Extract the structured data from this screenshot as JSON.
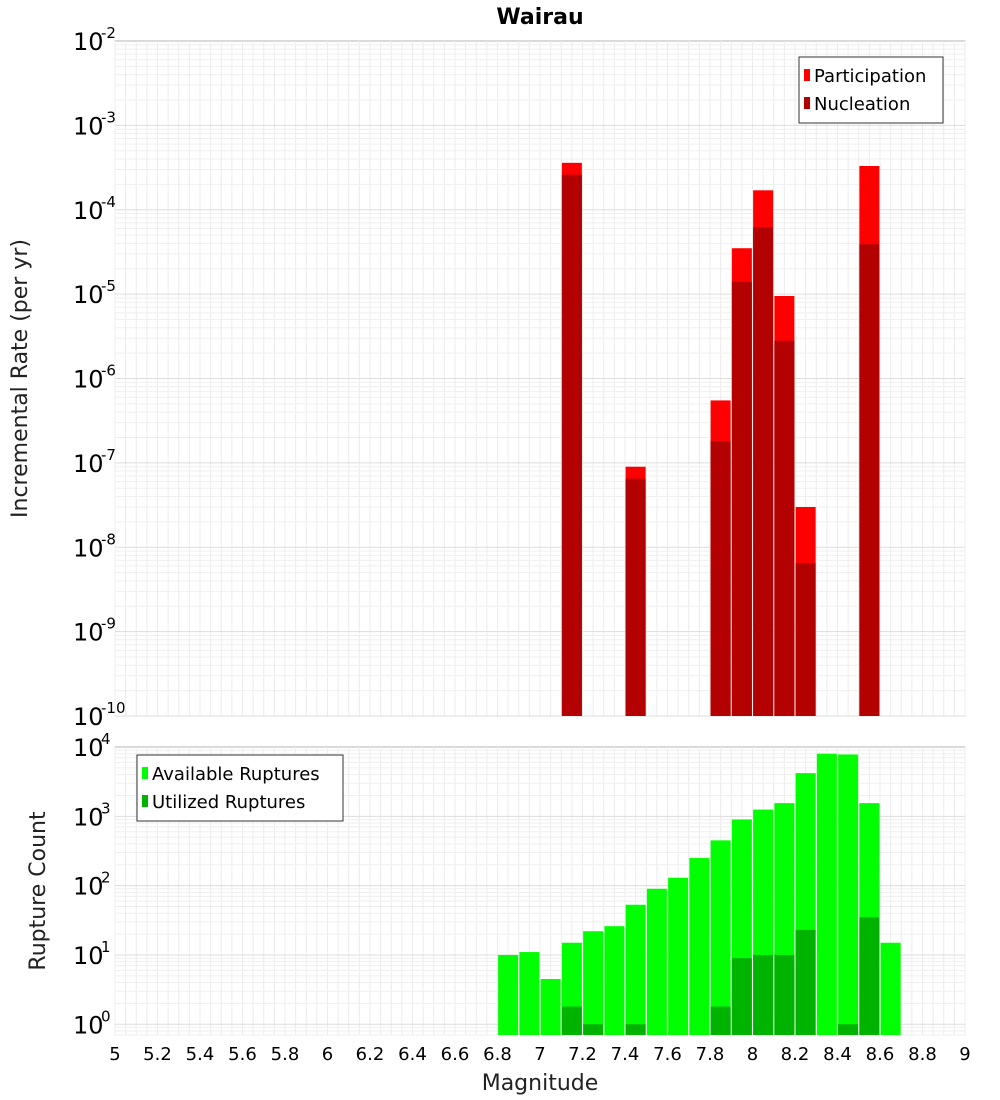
{
  "chart_data": [
    {
      "type": "bar",
      "title": "Wairau",
      "xlabel": "",
      "ylabel": "Incremental Rate (per yr)",
      "yscale": "log",
      "xlim": [
        5,
        9
      ],
      "ylim": [
        1e-10,
        0.01
      ],
      "ytick_labels": [
        {
          "base": "10",
          "exp": "-2"
        },
        {
          "base": "10",
          "exp": "-3"
        },
        {
          "base": "10",
          "exp": "-4"
        },
        {
          "base": "10",
          "exp": "-5"
        },
        {
          "base": "10",
          "exp": "-6"
        },
        {
          "base": "10",
          "exp": "-7"
        },
        {
          "base": "10",
          "exp": "-8"
        },
        {
          "base": "10",
          "exp": "-9"
        },
        {
          "base": "10",
          "exp": "-10"
        }
      ],
      "grid": true,
      "legend_position": "top-right",
      "series": [
        {
          "name": "Participation",
          "color": "#ff0000",
          "x": [
            7.15,
            7.45,
            7.85,
            7.95,
            8.05,
            8.15,
            8.25,
            8.55
          ],
          "values": [
            0.00036,
            9e-08,
            5.5e-07,
            3.5e-05,
            0.00017,
            9.5e-06,
            3e-08,
            0.00033
          ]
        },
        {
          "name": "Nucleation",
          "color": "#b30000",
          "x": [
            7.15,
            7.45,
            7.85,
            7.95,
            8.05,
            8.15,
            8.25,
            8.55
          ],
          "values": [
            0.00026,
            6.5e-08,
            1.8e-07,
            1.4e-05,
            6.2e-05,
            2.8e-06,
            6.5e-09,
            3.9e-05
          ]
        }
      ]
    },
    {
      "type": "bar",
      "title": "",
      "xlabel": "Magnitude",
      "ylabel": "Rupture Count",
      "yscale": "log",
      "xlim": [
        5,
        9
      ],
      "ylim": [
        0.7,
        10000
      ],
      "xticks": [
        "5",
        "5.2",
        "5.4",
        "5.6",
        "5.8",
        "6",
        "6.2",
        "6.4",
        "6.6",
        "6.8",
        "7",
        "7.2",
        "7.4",
        "7.6",
        "7.8",
        "8",
        "8.2",
        "8.4",
        "8.6",
        "8.8",
        "9"
      ],
      "ytick_labels": [
        {
          "base": "10",
          "exp": "4"
        },
        {
          "base": "10",
          "exp": "3"
        },
        {
          "base": "10",
          "exp": "2"
        },
        {
          "base": "10",
          "exp": "1"
        },
        {
          "base": "10",
          "exp": "0"
        }
      ],
      "grid": true,
      "legend_position": "top-left",
      "series": [
        {
          "name": "Available Ruptures",
          "color": "#00ff00",
          "x": [
            6.85,
            6.95,
            7.05,
            7.15,
            7.25,
            7.35,
            7.45,
            7.55,
            7.65,
            7.75,
            7.85,
            7.95,
            8.05,
            8.15,
            8.25,
            8.35,
            8.45,
            8.55,
            8.65
          ],
          "values": [
            10,
            11,
            4.5,
            15,
            22,
            26,
            53,
            90,
            130,
            250,
            450,
            900,
            1250,
            1550,
            4200,
            8000,
            7800,
            1550,
            15
          ]
        },
        {
          "name": "Utilized Ruptures",
          "color": "#00b300",
          "x": [
            7.15,
            7.25,
            7.45,
            7.85,
            7.95,
            8.05,
            8.15,
            8.25,
            8.45,
            8.55
          ],
          "values": [
            1.8,
            1,
            1,
            1.8,
            9,
            10,
            10,
            23,
            1,
            35
          ]
        }
      ]
    }
  ]
}
